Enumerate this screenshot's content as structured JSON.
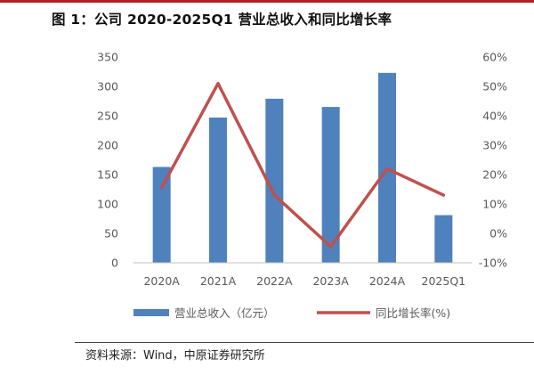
{
  "figure": {
    "title": "图 1：公司 2020-2025Q1 营业总收入和同比增长率",
    "source": "资料来源：Wind，中原证券研究所"
  },
  "chart_data": {
    "type": "bar",
    "categories": [
      "2020A",
      "2021A",
      "2022A",
      "2023A",
      "2024A",
      "2025Q1"
    ],
    "series": [
      {
        "name": "营业总收入（亿元）",
        "type": "bar",
        "axis": "left",
        "values": [
          163,
          247,
          279,
          265,
          323,
          81
        ],
        "color": "#4f81bd"
      },
      {
        "name": "同比增长率(%)",
        "type": "line",
        "axis": "right",
        "values": [
          15.5,
          51,
          13,
          -4.5,
          22,
          13
        ],
        "color": "#c0504d"
      }
    ],
    "y_left": {
      "ylim": [
        0,
        350
      ],
      "ticks": [
        0,
        50,
        100,
        150,
        200,
        250,
        300,
        350
      ],
      "tick_labels": [
        "0",
        "50",
        "100",
        "150",
        "200",
        "250",
        "300",
        "350"
      ]
    },
    "y_right": {
      "ylim": [
        -10,
        60
      ],
      "ticks": [
        -10,
        0,
        10,
        20,
        30,
        40,
        50,
        60
      ],
      "tick_labels": [
        "-10%",
        "0%",
        "10%",
        "20%",
        "30%",
        "40%",
        "50%",
        "60%"
      ]
    },
    "grid": false,
    "legend_position": "bottom"
  }
}
